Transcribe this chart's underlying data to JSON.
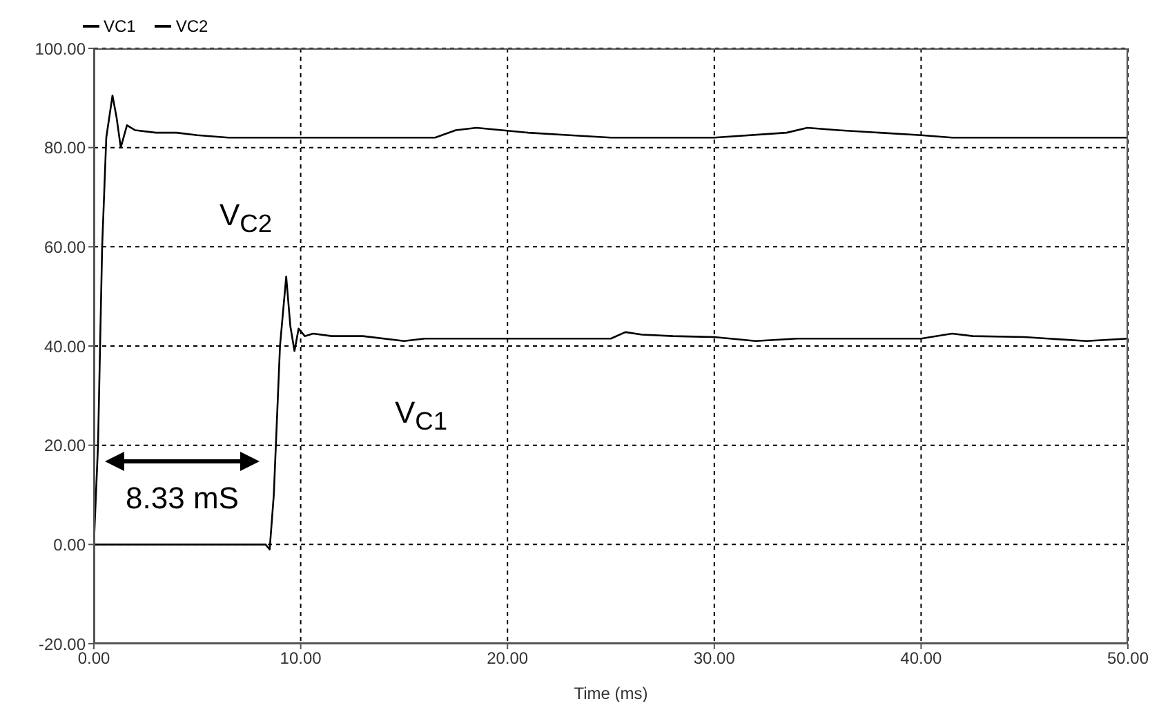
{
  "chart_data": {
    "type": "line",
    "xlabel": "Time (ms)",
    "xlim": [
      0,
      50
    ],
    "ylim": [
      -20,
      100
    ],
    "xticks": [
      {
        "value": 0,
        "label": "0.00"
      },
      {
        "value": 10,
        "label": "10.00"
      },
      {
        "value": 20,
        "label": "20.00"
      },
      {
        "value": 30,
        "label": "30.00"
      },
      {
        "value": 40,
        "label": "40.00"
      },
      {
        "value": 50,
        "label": "50.00"
      }
    ],
    "yticks": [
      {
        "value": -20,
        "label": "-20.00"
      },
      {
        "value": 0,
        "label": "0.00"
      },
      {
        "value": 20,
        "label": "20.00"
      },
      {
        "value": 40,
        "label": "40.00"
      },
      {
        "value": 60,
        "label": "60.00"
      },
      {
        "value": 80,
        "label": "80.00"
      },
      {
        "value": 100,
        "label": "100.00"
      }
    ],
    "grid": true,
    "legend": "top left",
    "marker": "none",
    "line_style": "solid",
    "series": [
      {
        "name": "VC1",
        "color": "#000000",
        "x": [
          0,
          8.3,
          8.5,
          8.7,
          9.0,
          9.3,
          9.5,
          9.7,
          9.9,
          10.2,
          10.6,
          11.5,
          13,
          15,
          16,
          17,
          20,
          25,
          25.7,
          26.5,
          28,
          30,
          32,
          34,
          35,
          40,
          41.5,
          42.5,
          45,
          48,
          50
        ],
        "values": [
          0,
          0,
          -1,
          10,
          40,
          54,
          44,
          39,
          43.5,
          42,
          42.5,
          42,
          42,
          41,
          41.5,
          41.5,
          41.5,
          41.5,
          42.8,
          42.3,
          42,
          41.8,
          41,
          41.5,
          41.5,
          41.5,
          42.5,
          42,
          41.8,
          41,
          41.5
        ]
      },
      {
        "name": "VC2",
        "color": "#000000",
        "x": [
          0,
          0.2,
          0.4,
          0.6,
          0.9,
          1.1,
          1.3,
          1.6,
          2,
          3,
          4,
          5,
          6.5,
          8,
          10,
          16.5,
          17.5,
          18.5,
          21,
          23,
          25,
          30,
          33.5,
          34.5,
          36,
          38,
          40,
          41.5,
          45,
          50
        ],
        "values": [
          0,
          20,
          60,
          82,
          90.5,
          86,
          80,
          84.5,
          83.5,
          83,
          83,
          82.5,
          82,
          82,
          82,
          82,
          83.5,
          84,
          83,
          82.5,
          82,
          82,
          83,
          84,
          83.5,
          83,
          82.5,
          82,
          82,
          82
        ]
      }
    ],
    "annotations": [
      "V$_{C2}$",
      "V$_{C1}$",
      "8.33 mS"
    ]
  }
}
